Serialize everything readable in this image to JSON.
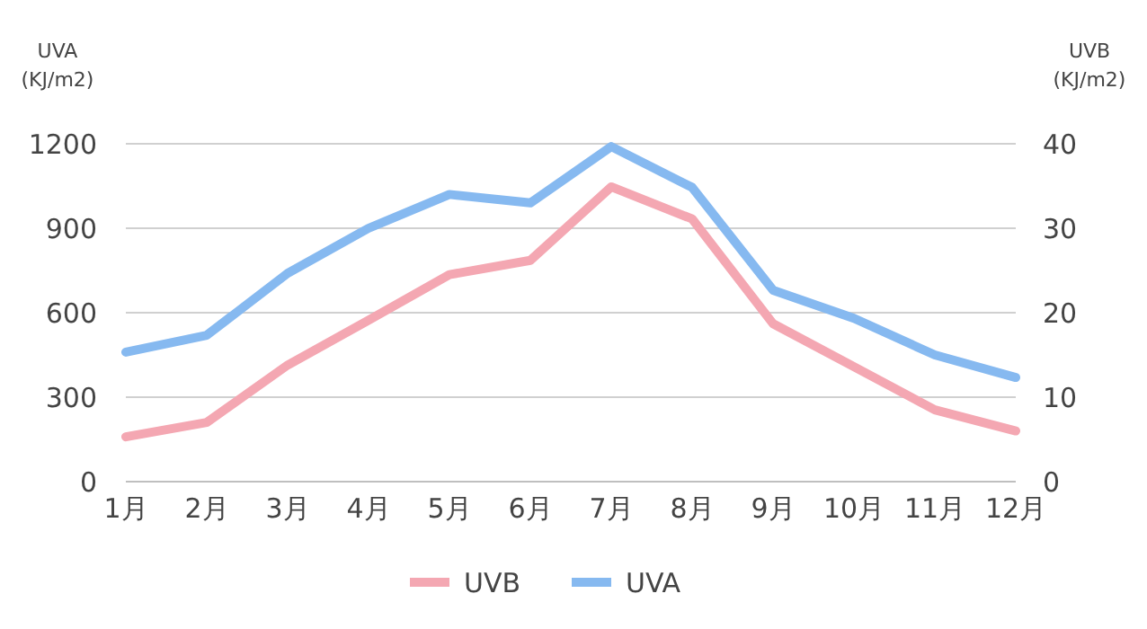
{
  "chart_data": {
    "type": "line",
    "ylabel": "UVA (KJ/m2)",
    "y2label": "UVB (KJ/m2)",
    "categories": [
      "1月",
      "2月",
      "3月",
      "4月",
      "5月",
      "6月",
      "7月",
      "8月",
      "9月",
      "10月",
      "11月",
      "12月"
    ],
    "series": [
      {
        "name": "UVB",
        "color": "#f4a7b2",
        "axis": "y2",
        "values": [
          5.3,
          7,
          13.8,
          19.1,
          24.5,
          26.2,
          34.9,
          31.1,
          18.7,
          13.6,
          8.5,
          6
        ]
      },
      {
        "name": "UVA",
        "color": "#86b9f0",
        "values": [
          460,
          520,
          740,
          900,
          1020,
          990,
          1190,
          1045,
          680,
          580,
          450,
          370
        ]
      }
    ],
    "ylim": [
      0,
      1200
    ],
    "yticks": [
      0,
      300,
      600,
      900,
      1200
    ],
    "y2lim": [
      0,
      40
    ],
    "y2ticks": [
      0,
      10,
      20,
      30,
      40
    ],
    "grid": "y",
    "legend": "bottom",
    "marker": "none",
    "line_style": "solid"
  }
}
